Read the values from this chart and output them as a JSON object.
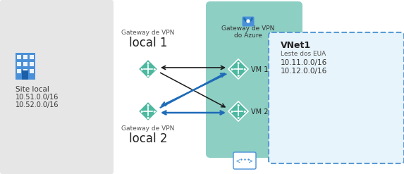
{
  "bg_color": "#ffffff",
  "local_box_color": "#e6e6e6",
  "azure_box_color": "#8ecfc4",
  "vnet_box_color": "#e8f4fb",
  "vnet_border_color": "#5b9bd5",
  "diamond_color": "#4db8a0",
  "arrow_black": "#1a1a1a",
  "arrow_blue": "#1e6bb8",
  "title_local1": "Gateway de VPN",
  "label_local1": "local 1",
  "title_local2": "Gateway de VPN",
  "label_local2": "local 2",
  "azure_label_top": "Gateway de VPN",
  "azure_label_bot": "do Azure",
  "site_label": "Site local",
  "site_sub1": "10.51.0.0/16",
  "site_sub2": "10.52.0.0/16",
  "vnet_title": "VNet1",
  "vnet_sub0": "Leste dos EUA",
  "vnet_sub1": "10.11.0.0/16",
  "vnet_sub2": "10.12.0.0/16",
  "vm1_label": "VM 1",
  "vm2_label": "VM 2",
  "fig_w": 5.73,
  "fig_h": 2.47,
  "dpi": 100
}
